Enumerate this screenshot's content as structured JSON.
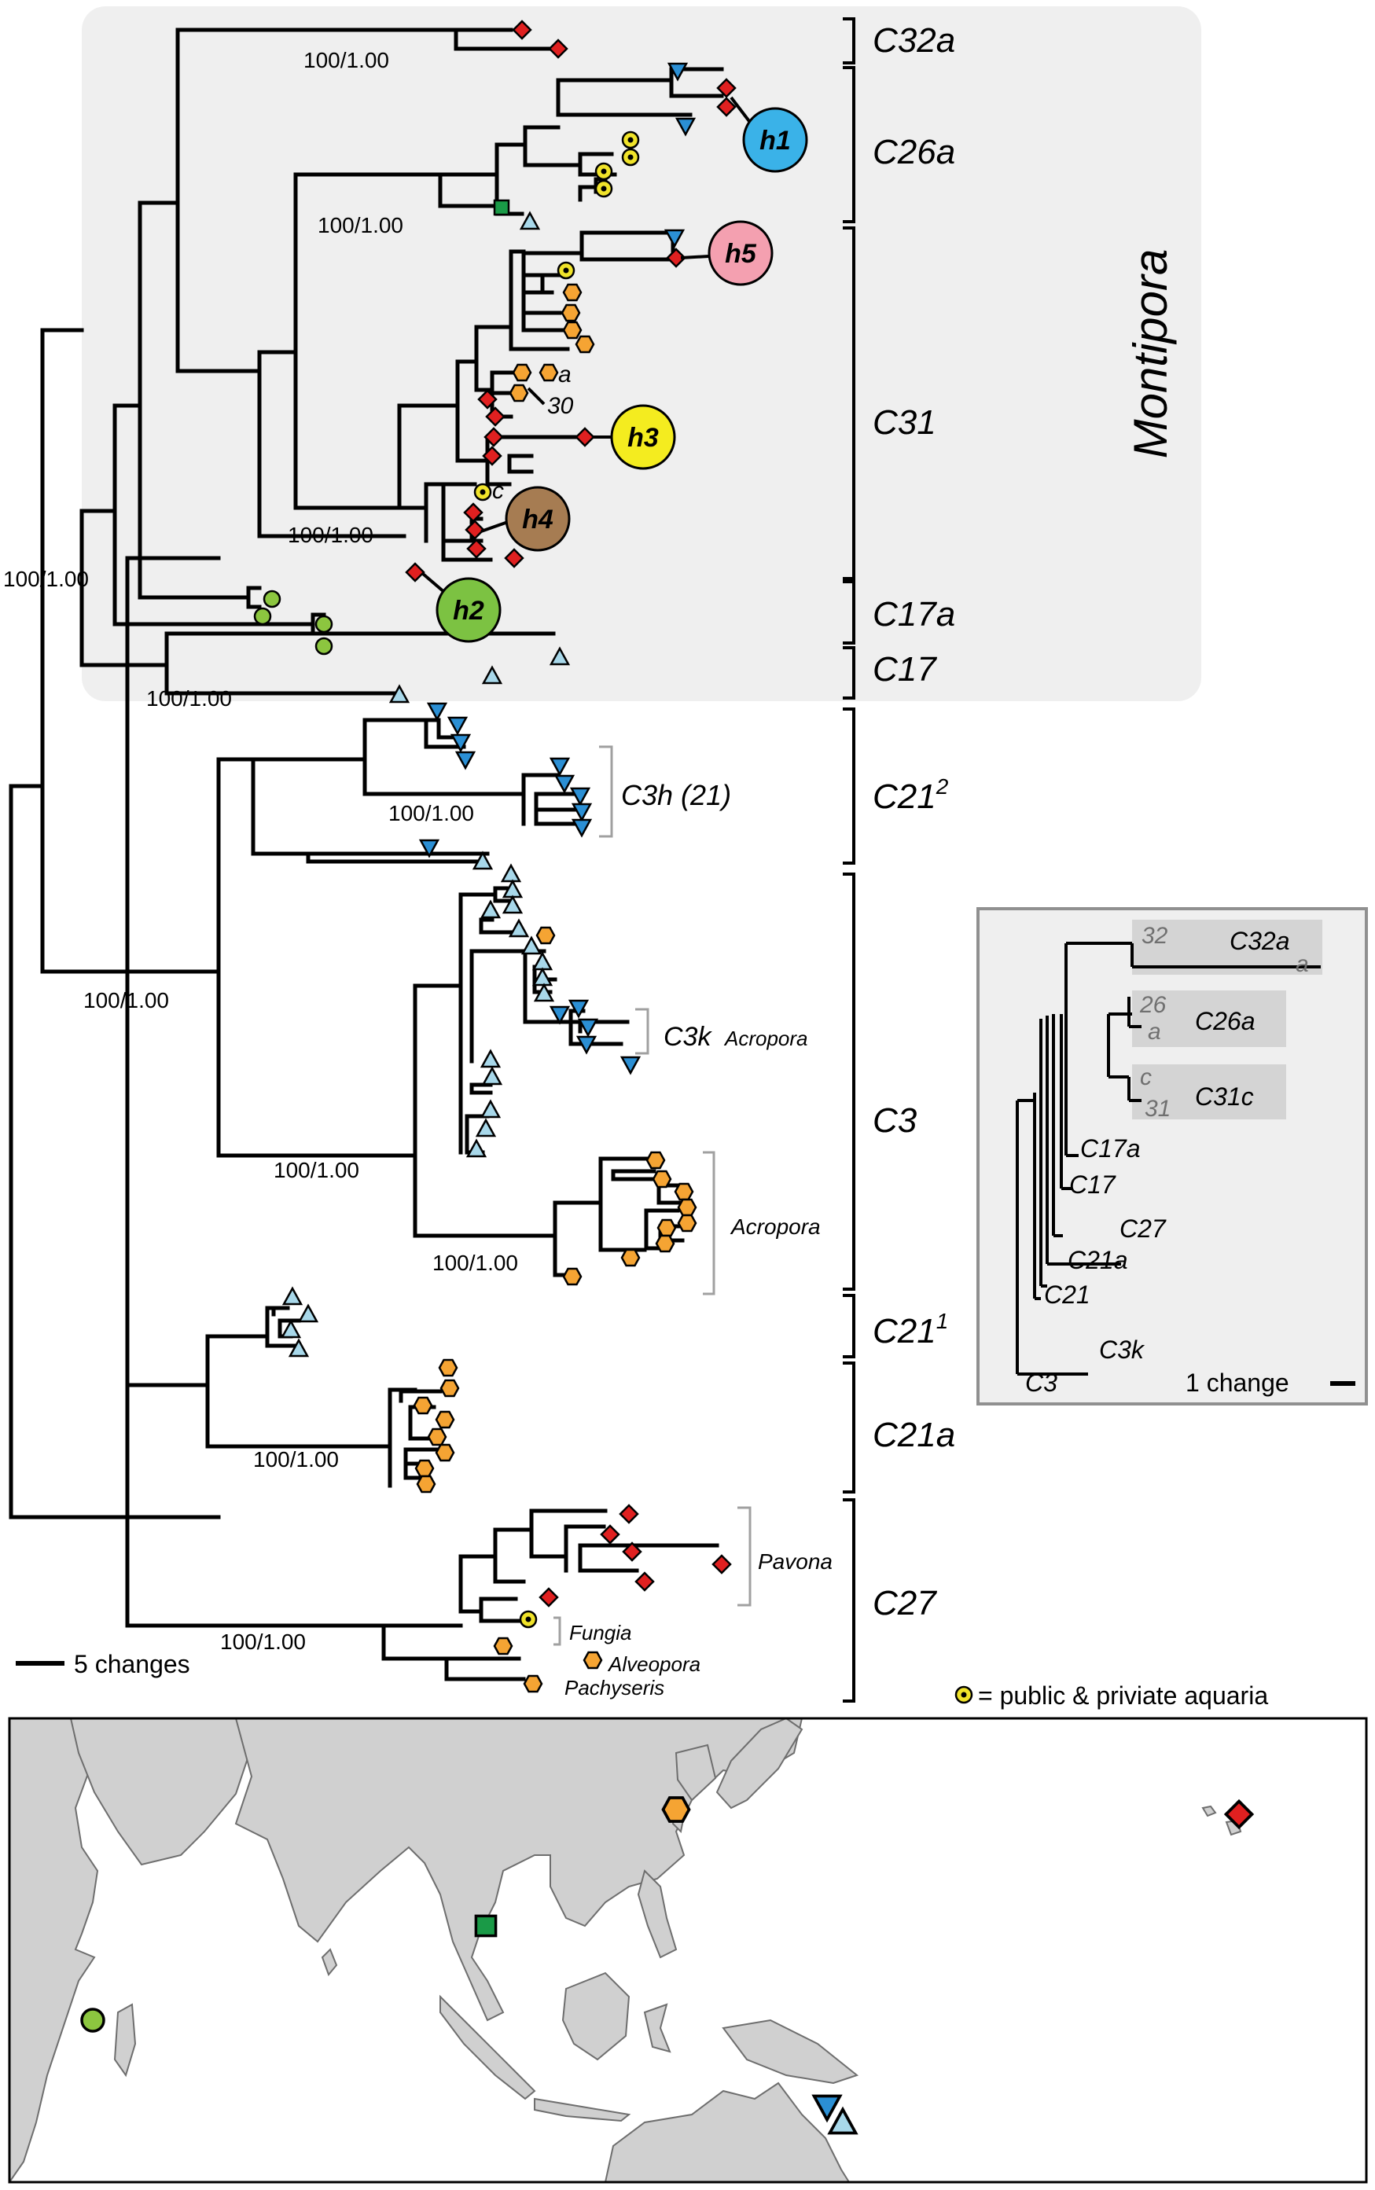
{
  "colors": {
    "diamond": "#e02020",
    "hexagon": "#f5a433",
    "triangle_up": "#a8d8ea",
    "triangle_down": "#2b8fd4",
    "square": "#1a9a47",
    "circle": "#8cc63f",
    "aquaria_ring": "#f0e32a",
    "h1": "#3ab2e8",
    "h2": "#7cc242",
    "h3": "#f4ec1f",
    "h4": "#a67c52",
    "h5": "#f4a0b0",
    "shade": "#efefef",
    "inset_shade": "#d4d4d4",
    "land": "#d0d0d0"
  },
  "icons": [
    "diamond-marker-icon",
    "hexagon-marker-icon",
    "triangle-up-marker-icon",
    "triangle-down-marker-icon",
    "square-marker-icon",
    "circle-marker-icon",
    "aquaria-marker-icon"
  ],
  "support": {
    "s1": "100/1.00",
    "s2": "100/1.00",
    "s3": "100/1.00",
    "s4": "100/1.00",
    "s5": "100/1.00",
    "s6": "100/1.00",
    "s7": "100/1.00",
    "s8": "100/1.00",
    "s9": "100/1.00",
    "s10": "100/1.00",
    "s11": "100/1.00",
    "s12": "100/1.00"
  },
  "clades": {
    "c32a": "C32a",
    "c26a": "C26a",
    "c31": "C31",
    "c17a": "C17a",
    "c17": "C17",
    "c21_2_base": "C21",
    "c21_2_sup": "2",
    "c3": "C3",
    "c21_1_base": "C21",
    "c21_1_sup": "1",
    "c21a": "C21a",
    "c27": "C27"
  },
  "genus": "Montipora",
  "haplotypes": {
    "h1": "h1",
    "h2": "h2",
    "h3": "h3",
    "h4": "h4",
    "h5": "h5"
  },
  "tip_labels": {
    "a": "a",
    "n30": "30",
    "c": "c"
  },
  "groups": {
    "c3h": "C3h (21)",
    "c3k": "C3k",
    "c3k_host": "Acropora",
    "acropora": "Acropora",
    "pavona": "Pavona",
    "fungia": "Fungia",
    "alveopora": "Alveopora",
    "pachyseris": "Pachyseris"
  },
  "scale": {
    "main": "5 changes",
    "inset": "1 change"
  },
  "legend": {
    "aquaria": "= public & priviate aquaria"
  },
  "inset": {
    "n32": "32",
    "c32a": "C32a",
    "a1": "a",
    "n26": "26",
    "a2": "a",
    "c26a": "C26a",
    "c": "c",
    "n31": "31",
    "c31c": "C31c",
    "c17a": "C17a",
    "c17": "C17",
    "c27": "C27",
    "c21a": "C21a",
    "c21": "C21",
    "c3k": "C3k",
    "c3": "C3"
  }
}
